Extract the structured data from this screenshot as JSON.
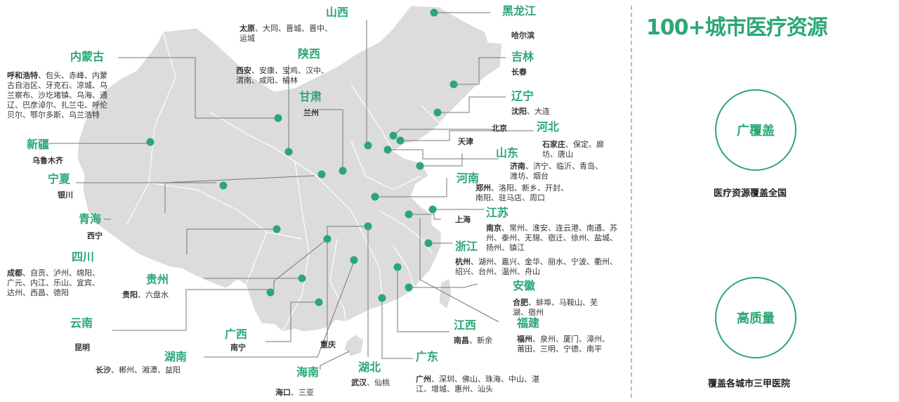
{
  "headline": "100+城市医疗资源",
  "features": [
    {
      "circle": "广覆盖",
      "caption": "医疗资源覆盖全国"
    },
    {
      "circle": "高质量",
      "caption": "覆盖各城市三甲医院"
    }
  ],
  "accent_color": "#2aa774",
  "map_fill_color": "#dcdcdc",
  "provinces": [
    {
      "name": "山西",
      "capital": "太原",
      "others": "、大同、晋城、晋中、运城"
    },
    {
      "name": "黑龙江",
      "capital": "哈尔滨",
      "others": ""
    },
    {
      "name": "内蒙古",
      "capital": "呼和浩特",
      "others": "、包头、赤峰、内蒙古自治区、牙克石、凉城、乌兰察布、沙圪堵镇、乌海、通辽、巴彦淖尔、扎兰屯、呼伦贝尔、鄂尔多斯、乌兰浩特"
    },
    {
      "name": "陕西",
      "capital": "西安",
      "others": "、安康、宝鸡、汉中、渭南、咸阳、榆林"
    },
    {
      "name": "吉林",
      "capital": "长春",
      "others": ""
    },
    {
      "name": "甘肃",
      "capital": "兰州",
      "others": ""
    },
    {
      "name": "辽宁",
      "capital": "沈阳",
      "others": "、大连"
    },
    {
      "name": "新疆",
      "capital": "乌鲁木齐",
      "others": ""
    },
    {
      "name": "河北",
      "capital": "石家庄",
      "others": "、保定、廊坊、唐山"
    },
    {
      "name": "山东",
      "capital": "济南",
      "others": "、济宁、临沂、青岛、潍坊、烟台"
    },
    {
      "name": "宁夏",
      "capital": "银川",
      "others": ""
    },
    {
      "name": "河南",
      "capital": "郑州",
      "others": "、洛阳、新乡、开封、南阳、驻马店、周口"
    },
    {
      "name": "青海",
      "capital": "西宁",
      "others": ""
    },
    {
      "name": "江苏",
      "capital": "南京",
      "others": "、常州、淮安、连云港、南通、苏州、泰州、无锡、宿迁、徐州、盐城、扬州、镇江"
    },
    {
      "name": "四川",
      "capital": "成都",
      "others": "、自贡、泸州、绵阳、广元、内江、乐山、宜宾、达州、西昌、德阳"
    },
    {
      "name": "浙江",
      "capital": "杭州",
      "others": "、湖州、嘉兴、金华、丽水、宁波、衢州、绍兴、台州、温州、舟山"
    },
    {
      "name": "贵州",
      "capital": "贵阳",
      "others": "、六盘水"
    },
    {
      "name": "安徽",
      "capital": "合肥",
      "others": "、蚌埠、马鞍山、芜湖、宿州"
    },
    {
      "name": "云南",
      "capital": "昆明",
      "others": ""
    },
    {
      "name": "福建",
      "capital": "福州",
      "others": "、泉州、厦门、漳州、莆田、三明、宁德、南平"
    },
    {
      "name": "广西",
      "capital": "南宁",
      "others": ""
    },
    {
      "name": "江西",
      "capital": "南昌",
      "others": "、新余"
    },
    {
      "name": "湖南",
      "capital": "长沙",
      "others": "、郴州、湘潭、益阳"
    },
    {
      "name": "广东",
      "capital": "广州",
      "others": "、深圳、佛山、珠海、中山、湛江、增城、惠州、汕头"
    },
    {
      "name": "海南",
      "capital": "海口",
      "others": "、三亚"
    },
    {
      "name": "湖北",
      "capital": "武汉",
      "others": "、仙桃"
    }
  ],
  "municipalities": [
    "北京",
    "天津",
    "上海",
    "重庆"
  ]
}
